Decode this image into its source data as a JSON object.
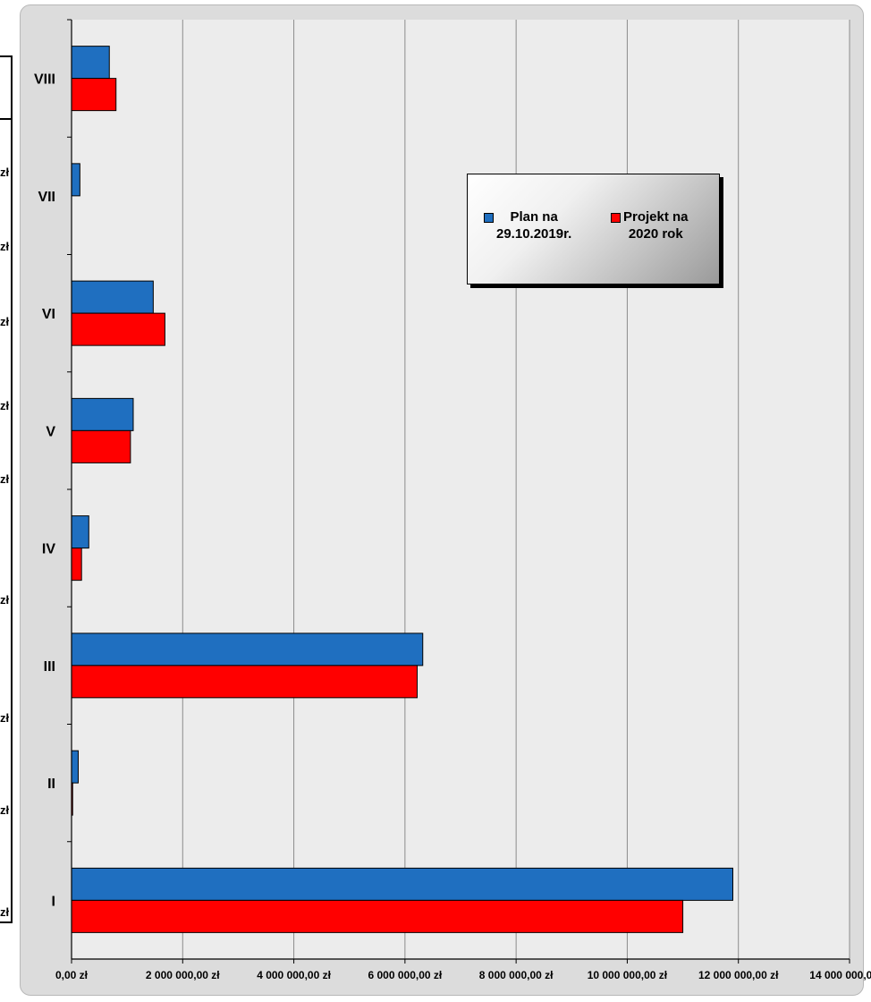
{
  "stub_labels": [
    "zł",
    "zł",
    "zł",
    "zł",
    "zł",
    "zł",
    "zł",
    "zł",
    "zł"
  ],
  "colors": {
    "plan": "#1f6fc0",
    "projekt": "#ff0000",
    "plot_bg": "#ececec",
    "frame_bg": "#dcdcdc"
  },
  "chart_data": {
    "type": "bar",
    "orientation": "horizontal",
    "categories": [
      "I",
      "II",
      "III",
      "IV",
      "V",
      "VI",
      "VII",
      "VIII"
    ],
    "series": [
      {
        "name": "Plan na 29.10.2019r.",
        "values": [
          11900000,
          120000,
          6320000,
          310000,
          1110000,
          1470000,
          150000,
          680000
        ]
      },
      {
        "name": "Projekt na 2020 rok",
        "values": [
          11000000,
          20000,
          6220000,
          180000,
          1060000,
          1680000,
          0,
          800000
        ]
      }
    ],
    "xlim": [
      0,
      14000000
    ],
    "xticks": [
      0,
      2000000,
      4000000,
      6000000,
      8000000,
      10000000,
      12000000,
      14000000
    ],
    "xtick_labels": [
      "0,00 zł",
      "2 000 000,00 zł",
      "4 000 000,00 zł",
      "6 000 000,00 zł",
      "8 000 000,00 zł",
      "10 000 000,00 zł",
      "12 000 000,00 zł",
      "14 000 000,00 zł"
    ],
    "legend": {
      "position": "top-right",
      "entries": [
        {
          "line1": "Plan na",
          "line2": "29.10.2019r."
        },
        {
          "line1": "Projekt na",
          "line2": "2020 rok"
        }
      ]
    },
    "grid": true
  }
}
